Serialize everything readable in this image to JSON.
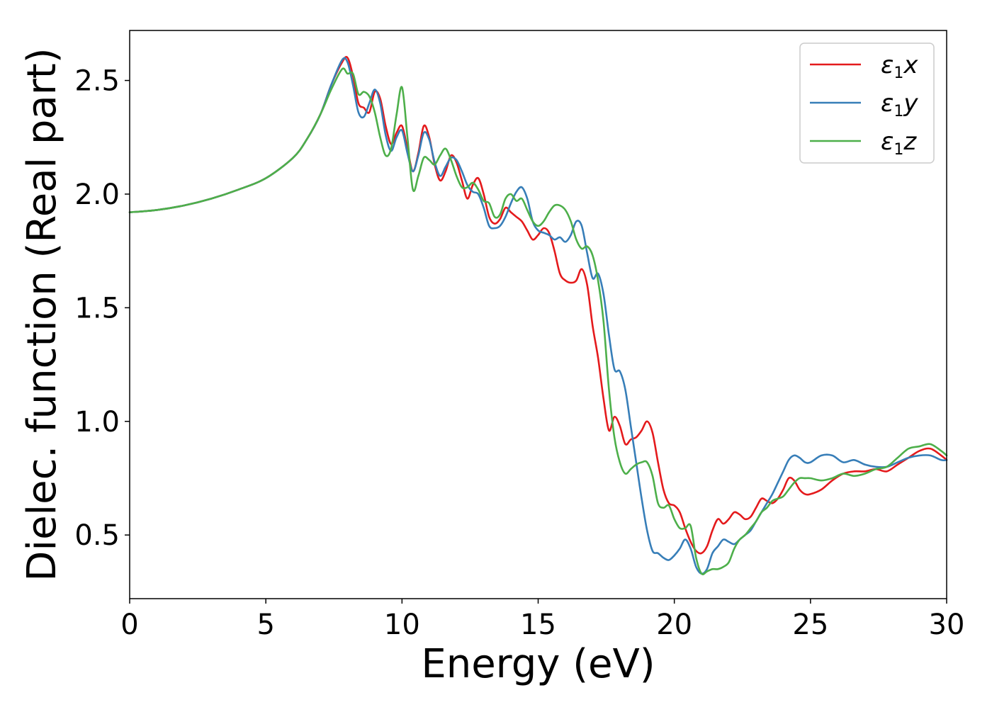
{
  "chart_data": {
    "type": "line",
    "title": "",
    "xlabel": "Energy (eV)",
    "ylabel": "Dielec. function (Real part)",
    "xlim": [
      0,
      30
    ],
    "ylim": [
      0.22,
      2.72
    ],
    "xticks": [
      0,
      5,
      10,
      15,
      20,
      25,
      30
    ],
    "xtick_labels": [
      "0",
      "5",
      "10",
      "15",
      "20",
      "25",
      "30"
    ],
    "yticks": [
      0.5,
      1.0,
      1.5,
      2.0,
      2.5
    ],
    "ytick_labels": [
      "0.5",
      "1.0",
      "1.5",
      "2.0",
      "2.5"
    ],
    "grid": false,
    "legend_position": "top-right",
    "series": [
      {
        "name": "ε₁x",
        "legend_main": "ε",
        "legend_sub": "1",
        "legend_suffix": "x",
        "color": "#e41a1c",
        "x": [
          0,
          1,
          2,
          3,
          4,
          5,
          6,
          6.5,
          7,
          7.4,
          7.8,
          8.0,
          8.2,
          8.4,
          8.6,
          8.8,
          9.0,
          9.2,
          9.4,
          9.6,
          9.8,
          10.0,
          10.2,
          10.4,
          10.6,
          10.8,
          11.0,
          11.2,
          11.4,
          11.6,
          11.8,
          12.0,
          12.2,
          12.4,
          12.6,
          12.8,
          13.0,
          13.2,
          13.4,
          13.6,
          13.8,
          14.0,
          14.2,
          14.4,
          14.6,
          14.8,
          15.0,
          15.2,
          15.4,
          15.6,
          15.8,
          16.0,
          16.2,
          16.4,
          16.6,
          16.8,
          17.0,
          17.2,
          17.4,
          17.6,
          17.8,
          18.0,
          18.2,
          18.4,
          18.6,
          18.8,
          19.0,
          19.2,
          19.4,
          19.6,
          19.8,
          20.0,
          20.2,
          20.4,
          20.6,
          20.8,
          21.0,
          21.2,
          21.4,
          21.6,
          21.8,
          22.0,
          22.2,
          22.4,
          22.6,
          22.8,
          23.0,
          23.2,
          23.4,
          23.6,
          23.8,
          24.0,
          24.2,
          24.4,
          24.6,
          24.8,
          25.0,
          25.4,
          25.8,
          26.2,
          26.6,
          27.0,
          27.4,
          27.8,
          28.2,
          28.6,
          29.0,
          29.4,
          29.8,
          30.0
        ],
        "y": [
          1.92,
          1.93,
          1.95,
          1.98,
          2.02,
          2.07,
          2.16,
          2.24,
          2.35,
          2.48,
          2.58,
          2.6,
          2.52,
          2.4,
          2.38,
          2.36,
          2.45,
          2.42,
          2.3,
          2.22,
          2.27,
          2.3,
          2.2,
          2.1,
          2.18,
          2.3,
          2.25,
          2.13,
          2.06,
          2.1,
          2.17,
          2.14,
          2.06,
          1.98,
          2.04,
          2.07,
          2.0,
          1.9,
          1.87,
          1.89,
          1.94,
          1.92,
          1.9,
          1.88,
          1.84,
          1.8,
          1.82,
          1.85,
          1.83,
          1.75,
          1.65,
          1.62,
          1.61,
          1.62,
          1.67,
          1.6,
          1.42,
          1.28,
          1.1,
          0.96,
          1.02,
          0.98,
          0.9,
          0.92,
          0.93,
          0.96,
          1.0,
          0.95,
          0.82,
          0.7,
          0.64,
          0.63,
          0.6,
          0.53,
          0.47,
          0.43,
          0.42,
          0.45,
          0.52,
          0.57,
          0.55,
          0.57,
          0.6,
          0.59,
          0.57,
          0.58,
          0.62,
          0.66,
          0.65,
          0.64,
          0.66,
          0.7,
          0.75,
          0.74,
          0.7,
          0.68,
          0.68,
          0.7,
          0.74,
          0.77,
          0.78,
          0.78,
          0.79,
          0.78,
          0.81,
          0.84,
          0.87,
          0.88,
          0.85,
          0.83
        ]
      },
      {
        "name": "ε₁y",
        "legend_main": "ε",
        "legend_sub": "1",
        "legend_suffix": "y",
        "color": "#377eb8",
        "x": [
          0,
          1,
          2,
          3,
          4,
          5,
          6,
          6.5,
          7,
          7.4,
          7.8,
          8.0,
          8.2,
          8.4,
          8.6,
          8.8,
          9.0,
          9.2,
          9.4,
          9.6,
          9.8,
          10.0,
          10.2,
          10.4,
          10.6,
          10.8,
          11.0,
          11.2,
          11.4,
          11.6,
          11.8,
          12.0,
          12.2,
          12.4,
          12.6,
          12.8,
          13.0,
          13.2,
          13.4,
          13.6,
          13.8,
          14.0,
          14.2,
          14.4,
          14.6,
          14.8,
          15.0,
          15.2,
          15.4,
          15.6,
          15.8,
          16.0,
          16.2,
          16.4,
          16.6,
          16.8,
          17.0,
          17.2,
          17.4,
          17.6,
          17.8,
          18.0,
          18.2,
          18.4,
          18.6,
          18.8,
          19.0,
          19.2,
          19.4,
          19.6,
          19.8,
          20.0,
          20.2,
          20.4,
          20.6,
          20.8,
          21.0,
          21.2,
          21.4,
          21.6,
          21.8,
          22.0,
          22.2,
          22.4,
          22.6,
          22.8,
          23.0,
          23.2,
          23.4,
          23.6,
          23.8,
          24.0,
          24.2,
          24.4,
          24.6,
          24.8,
          25.0,
          25.4,
          25.8,
          26.2,
          26.6,
          27.0,
          27.4,
          27.8,
          28.2,
          28.6,
          29.0,
          29.4,
          29.8,
          30.0
        ],
        "y": [
          1.92,
          1.93,
          1.95,
          1.98,
          2.02,
          2.07,
          2.16,
          2.24,
          2.35,
          2.48,
          2.59,
          2.58,
          2.48,
          2.36,
          2.34,
          2.4,
          2.46,
          2.4,
          2.26,
          2.19,
          2.25,
          2.28,
          2.18,
          2.1,
          2.17,
          2.27,
          2.24,
          2.14,
          2.08,
          2.12,
          2.16,
          2.15,
          2.1,
          2.04,
          2.01,
          2.0,
          1.94,
          1.86,
          1.85,
          1.86,
          1.9,
          1.96,
          2.01,
          2.03,
          1.98,
          1.88,
          1.84,
          1.83,
          1.82,
          1.8,
          1.81,
          1.79,
          1.82,
          1.88,
          1.86,
          1.74,
          1.63,
          1.65,
          1.56,
          1.38,
          1.23,
          1.22,
          1.14,
          0.98,
          0.82,
          0.66,
          0.52,
          0.43,
          0.42,
          0.4,
          0.39,
          0.41,
          0.44,
          0.48,
          0.44,
          0.36,
          0.33,
          0.35,
          0.42,
          0.45,
          0.48,
          0.47,
          0.46,
          0.48,
          0.5,
          0.52,
          0.56,
          0.6,
          0.64,
          0.68,
          0.73,
          0.78,
          0.83,
          0.85,
          0.84,
          0.82,
          0.82,
          0.85,
          0.85,
          0.82,
          0.83,
          0.81,
          0.8,
          0.8,
          0.82,
          0.84,
          0.85,
          0.85,
          0.83,
          0.83
        ]
      },
      {
        "name": "ε₁z",
        "legend_main": "ε",
        "legend_sub": "1",
        "legend_suffix": "z",
        "color": "#4daf4a",
        "x": [
          0,
          1,
          2,
          3,
          4,
          5,
          6,
          6.5,
          7,
          7.4,
          7.8,
          8.0,
          8.2,
          8.4,
          8.6,
          8.8,
          9.0,
          9.2,
          9.4,
          9.6,
          9.8,
          10.0,
          10.2,
          10.4,
          10.6,
          10.8,
          11.0,
          11.2,
          11.4,
          11.6,
          11.8,
          12.0,
          12.2,
          12.4,
          12.6,
          12.8,
          13.0,
          13.2,
          13.4,
          13.6,
          13.8,
          14.0,
          14.2,
          14.4,
          14.6,
          14.8,
          15.0,
          15.2,
          15.4,
          15.6,
          15.8,
          16.0,
          16.2,
          16.4,
          16.6,
          16.8,
          17.0,
          17.2,
          17.4,
          17.6,
          17.8,
          18.0,
          18.2,
          18.4,
          18.6,
          18.8,
          19.0,
          19.2,
          19.4,
          19.6,
          19.8,
          20.0,
          20.2,
          20.4,
          20.6,
          20.8,
          21.0,
          21.2,
          21.4,
          21.6,
          21.8,
          22.0,
          22.2,
          22.4,
          22.6,
          22.8,
          23.0,
          23.2,
          23.4,
          23.6,
          23.8,
          24.0,
          24.2,
          24.4,
          24.6,
          24.8,
          25.0,
          25.4,
          25.8,
          26.2,
          26.6,
          27.0,
          27.4,
          27.8,
          28.2,
          28.6,
          29.0,
          29.4,
          29.8,
          30.0
        ],
        "y": [
          1.92,
          1.93,
          1.95,
          1.98,
          2.02,
          2.07,
          2.16,
          2.24,
          2.35,
          2.46,
          2.55,
          2.53,
          2.53,
          2.44,
          2.45,
          2.43,
          2.36,
          2.25,
          2.17,
          2.2,
          2.35,
          2.47,
          2.25,
          2.02,
          2.08,
          2.16,
          2.15,
          2.13,
          2.17,
          2.2,
          2.15,
          2.08,
          2.03,
          2.03,
          2.05,
          2.02,
          1.97,
          1.96,
          1.9,
          1.91,
          1.98,
          2.0,
          1.97,
          1.98,
          1.93,
          1.88,
          1.86,
          1.88,
          1.92,
          1.95,
          1.95,
          1.93,
          1.88,
          1.8,
          1.76,
          1.77,
          1.73,
          1.62,
          1.44,
          1.14,
          0.93,
          0.82,
          0.77,
          0.79,
          0.81,
          0.82,
          0.82,
          0.76,
          0.64,
          0.62,
          0.63,
          0.57,
          0.53,
          0.53,
          0.54,
          0.4,
          0.33,
          0.34,
          0.35,
          0.35,
          0.36,
          0.38,
          0.44,
          0.48,
          0.5,
          0.53,
          0.56,
          0.6,
          0.62,
          0.65,
          0.66,
          0.67,
          0.7,
          0.73,
          0.75,
          0.75,
          0.75,
          0.74,
          0.75,
          0.77,
          0.76,
          0.77,
          0.79,
          0.8,
          0.84,
          0.88,
          0.89,
          0.9,
          0.87,
          0.85
        ]
      }
    ]
  }
}
